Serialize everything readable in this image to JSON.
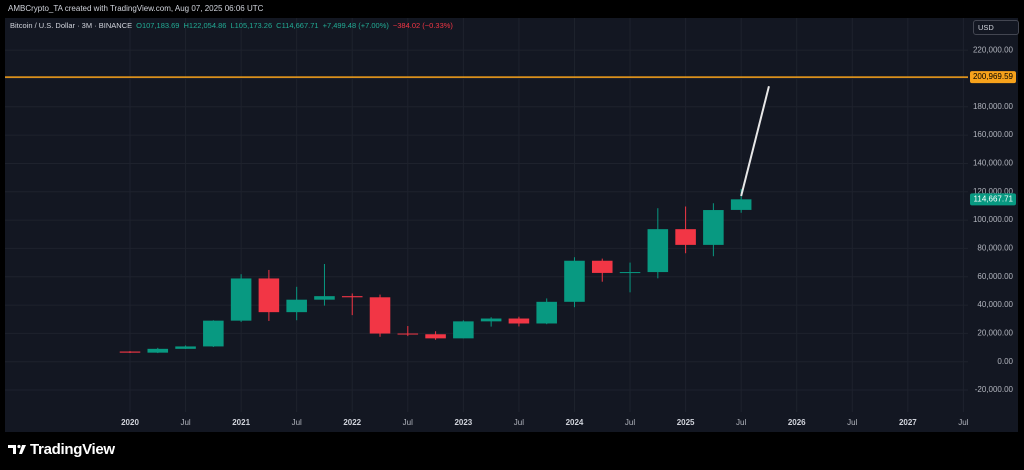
{
  "credit": "AMBCrypto_TA created with TradingView.com, Aug 07, 2025 06:06 UTC",
  "legend": {
    "symbol": "Bitcoin / U.S. Dollar · 3M · BINANCE",
    "ohlc": [
      "O107,183.69",
      "H122,054.86",
      "L105,173.26",
      "C114,667.71",
      "+7,499.48 (+7.00%)"
    ],
    "change": "−384.02 (−0.33%)"
  },
  "currency": "USD",
  "logo": "TradingView",
  "chart_data": {
    "type": "candlestick",
    "categories": [
      "2020",
      null,
      "Jul",
      null,
      "2021",
      null,
      "Jul",
      null,
      "2022",
      null,
      "Jul",
      null,
      "2023",
      null,
      "Jul",
      null,
      "2024",
      null,
      "Jul",
      null,
      "2025",
      null,
      "Jul",
      null,
      "2026",
      null,
      "Jul",
      null,
      "2027",
      null,
      "Jul"
    ],
    "open": [
      7200,
      6400,
      9100,
      10800,
      29000,
      58800,
      35000,
      43800,
      46300,
      45500,
      19900,
      19400,
      16500,
      28500,
      30500,
      27000,
      42300,
      71300,
      62700,
      63300,
      93600,
      82500,
      107183.69,
      null,
      null,
      null,
      null,
      null,
      null,
      null,
      null
    ],
    "high": [
      7500,
      9800,
      11500,
      29300,
      61800,
      64800,
      52900,
      69000,
      48200,
      47400,
      25200,
      21500,
      29200,
      31400,
      31800,
      44700,
      73800,
      72800,
      70000,
      108400,
      109600,
      111900,
      122054.86,
      null,
      null,
      null,
      null,
      null,
      null,
      null,
      null
    ],
    "low": [
      6200,
      6100,
      9000,
      10400,
      28100,
      28800,
      29300,
      39600,
      32900,
      17600,
      18100,
      15500,
      16500,
      24800,
      24900,
      26500,
      38500,
      56500,
      49000,
      58900,
      76600,
      74500,
      105173.26,
      null,
      null,
      null,
      null,
      null,
      null,
      null,
      null
    ],
    "close": [
      6400,
      9100,
      10800,
      29000,
      58800,
      35000,
      43800,
      46300,
      45500,
      19900,
      19400,
      16500,
      28500,
      30500,
      27000,
      42300,
      71300,
      62700,
      63300,
      93600,
      82500,
      107100,
      114667.71,
      null,
      null,
      null,
      null,
      null,
      null,
      null,
      null
    ],
    "up_color": "#089981",
    "down_color": "#f23645",
    "ylim": [
      -35500,
      242700
    ],
    "yticks": [
      {
        "value": -20000,
        "label": "-20,000.00"
      },
      {
        "value": 0,
        "label": "0.00"
      },
      {
        "value": 20000,
        "label": "20,000.00"
      },
      {
        "value": 40000,
        "label": "40,000.00"
      },
      {
        "value": 60000,
        "label": "60,000.00"
      },
      {
        "value": 80000,
        "label": "80,000.00"
      },
      {
        "value": 100000,
        "label": "100,000.00"
      },
      {
        "value": 120000,
        "label": "120,000.00"
      },
      {
        "value": 140000,
        "label": "140,000.00"
      },
      {
        "value": 160000,
        "label": "160,000.00"
      },
      {
        "value": 180000,
        "label": "180,000.00"
      },
      {
        "value": 200000,
        "label": "200,000.00"
      },
      {
        "value": 220000,
        "label": "220,000.00"
      }
    ],
    "grid": true,
    "last_price": {
      "value": 114667.71,
      "label": "114,667.71",
      "color": "#089981"
    },
    "horizontal_line": {
      "value": 200969.59,
      "label": "200,969.59",
      "color": "#f7a21b"
    },
    "trend_line": {
      "color": "#e8e8e8",
      "values": [
        null,
        null,
        null,
        null,
        null,
        null,
        null,
        null,
        null,
        null,
        null,
        null,
        null,
        null,
        null,
        null,
        null,
        null,
        null,
        null,
        null,
        null,
        117000,
        194500,
        null,
        null,
        null,
        null,
        null,
        null,
        null
      ]
    }
  }
}
